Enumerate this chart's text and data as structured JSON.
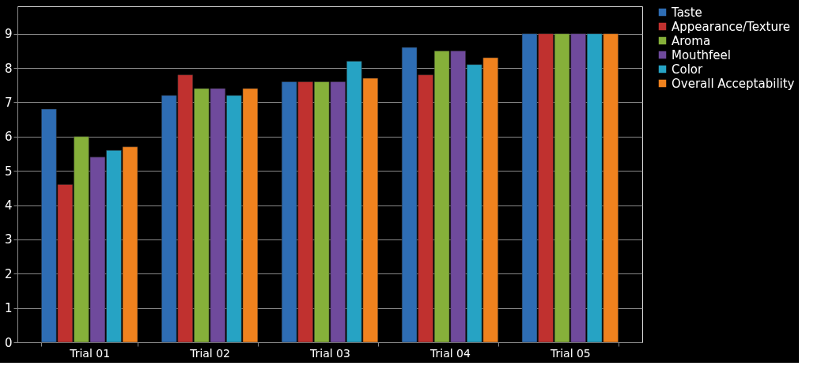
{
  "chart_data": {
    "type": "bar",
    "categories": [
      "Trial 01",
      "Trial 02",
      "Trial 03",
      "Trial 04",
      "Trial 05"
    ],
    "series": [
      {
        "name": "Taste",
        "color": "#2e6db4",
        "values": [
          6.8,
          7.2,
          7.6,
          8.6,
          9
        ]
      },
      {
        "name": "Appearance/Texture",
        "color": "#c0312f",
        "values": [
          4.6,
          7.8,
          7.6,
          7.8,
          9
        ]
      },
      {
        "name": "Aroma",
        "color": "#86b03a",
        "values": [
          6.0,
          7.4,
          7.6,
          8.5,
          9
        ]
      },
      {
        "name": "Mouthfeel",
        "color": "#6f4a9c",
        "values": [
          5.4,
          7.4,
          7.6,
          8.5,
          9
        ]
      },
      {
        "name": "Color",
        "color": "#26a3c4",
        "values": [
          5.6,
          7.2,
          8.2,
          8.1,
          9
        ]
      },
      {
        "name": "Overall Acceptability",
        "color": "#f0821e",
        "values": [
          5.7,
          7.4,
          7.7,
          8.3,
          9
        ]
      }
    ],
    "ylim": [
      0,
      9.8
    ],
    "yticks": [
      0,
      1,
      2,
      3,
      4,
      5,
      6,
      7,
      8,
      9
    ],
    "grid": "y",
    "legend": "right"
  }
}
